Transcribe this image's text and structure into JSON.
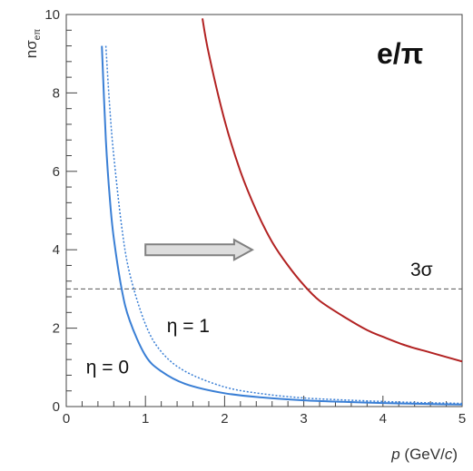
{
  "chart_data": {
    "type": "line",
    "title": "e/π",
    "xlabel": {
      "italic": "p",
      "rest1": " (GeV/",
      "italic2": "c",
      "rest2": ")"
    },
    "ylabel": {
      "main": "nσ",
      "sub": "eπ"
    },
    "xlim": [
      0,
      5
    ],
    "ylim": [
      0,
      10
    ],
    "xticks": [
      0,
      1,
      2,
      3,
      4,
      5
    ],
    "yticks": [
      0,
      2,
      4,
      6,
      8,
      10
    ],
    "grid": false,
    "series": [
      {
        "name": "η = 0",
        "color": "#3a7fd5",
        "style": "solid",
        "x": [
          0.45,
          0.5,
          0.55,
          0.6,
          0.7,
          0.8,
          1.0,
          1.2,
          1.5,
          2.0,
          2.5,
          3.0,
          3.5,
          4.0,
          4.5,
          5.0
        ],
        "y": [
          9.2,
          6.8,
          5.3,
          4.3,
          3.0,
          2.2,
          1.3,
          0.9,
          0.58,
          0.34,
          0.23,
          0.16,
          0.12,
          0.09,
          0.07,
          0.05
        ]
      },
      {
        "name": "η = 1",
        "color": "#3a7fd5",
        "style": "dotted",
        "x": [
          0.5,
          0.55,
          0.6,
          0.7,
          0.8,
          1.0,
          1.2,
          1.5,
          2.0,
          2.5,
          3.0,
          3.5,
          4.0,
          4.5,
          5.0
        ],
        "y": [
          9.2,
          7.6,
          6.4,
          4.6,
          3.4,
          2.1,
          1.4,
          0.9,
          0.5,
          0.32,
          0.22,
          0.17,
          0.13,
          0.1,
          0.08
        ]
      },
      {
        "name": "",
        "color": "#b22222",
        "style": "solid",
        "x": [
          1.72,
          1.8,
          2.0,
          2.2,
          2.4,
          2.6,
          2.8,
          3.0,
          3.2,
          3.5,
          3.8,
          4.0,
          4.3,
          4.6,
          5.0
        ],
        "y": [
          9.9,
          9.0,
          7.3,
          6.0,
          5.0,
          4.2,
          3.6,
          3.1,
          2.7,
          2.3,
          1.95,
          1.78,
          1.55,
          1.38,
          1.15
        ]
      }
    ],
    "reference_line": {
      "y": 3,
      "style": "dashed",
      "color": "#555555",
      "label": "3σ"
    },
    "arrow": {
      "from": [
        1.0,
        4.0
      ],
      "to": [
        2.35,
        4.0
      ],
      "color": "#808080",
      "fill": "#dddddd"
    },
    "annotations": [
      {
        "text": "η = 0",
        "x": 0.25,
        "y": 0.85
      },
      {
        "text": "η = 1",
        "x": 1.27,
        "y": 1.9
      }
    ]
  }
}
